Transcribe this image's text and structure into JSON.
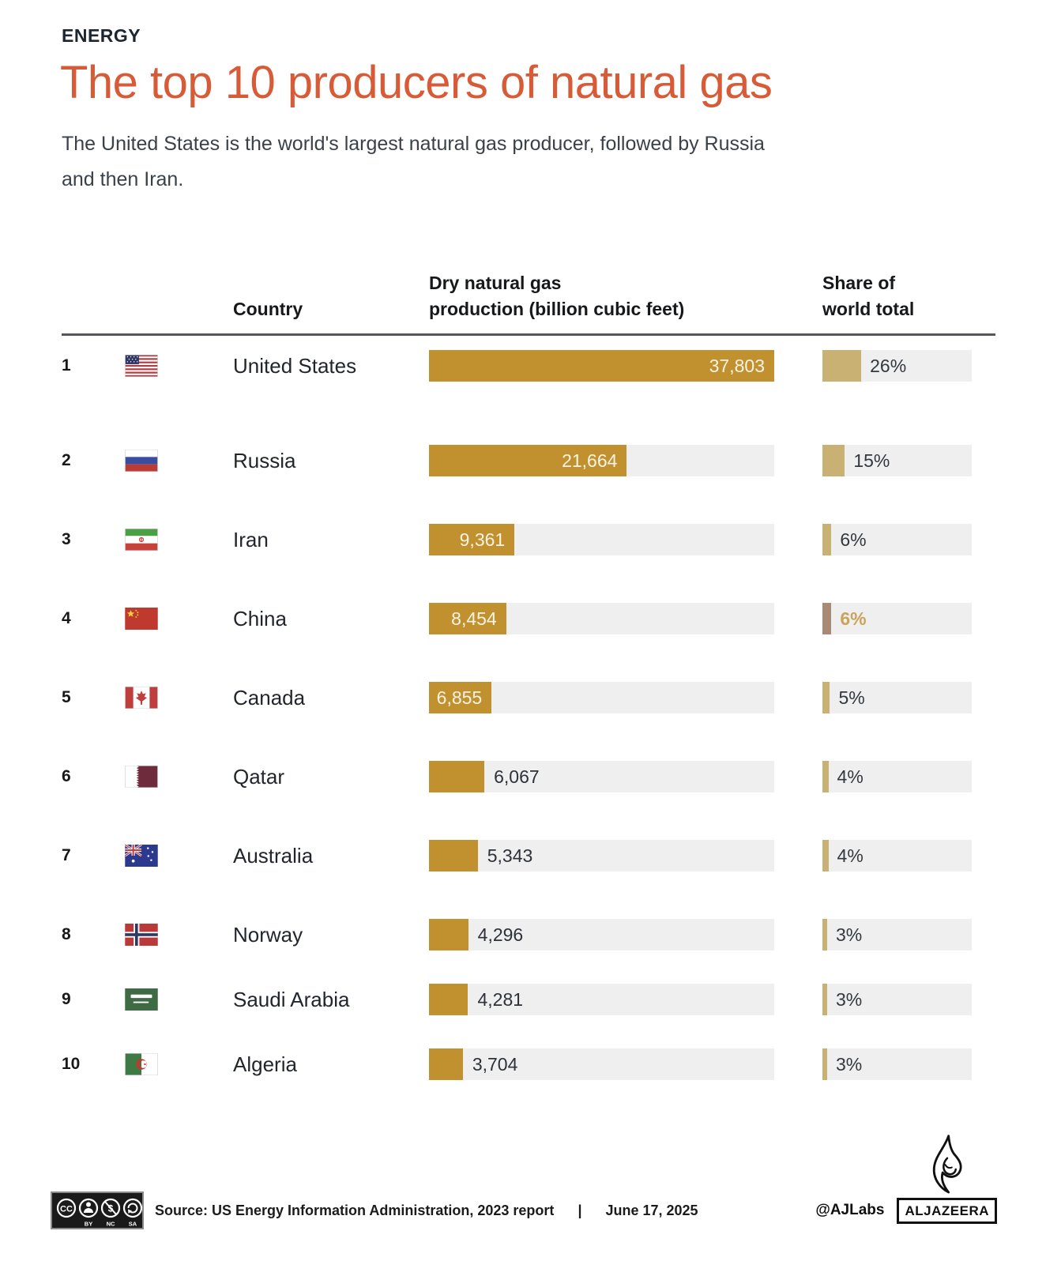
{
  "header": {
    "kicker": "ENERGY",
    "title": "The top 10 producers of natural gas",
    "subtitle_line1": "The United States is the world's largest natural gas producer, followed by Russia",
    "subtitle_line2": "and then Iran."
  },
  "table": {
    "columns": {
      "country": "Country",
      "production_line1": "Dry natural gas",
      "production_line2": "production (billion cubic feet)",
      "share_line1": "Share of",
      "share_line2": "world total"
    }
  },
  "rows": [
    {
      "rank": "1",
      "flag": "united-states",
      "country": "United States",
      "value": "37,803",
      "value_num": 37803,
      "share": "26%",
      "share_num": 26,
      "label_inside": true,
      "share_highlight": false
    },
    {
      "rank": "2",
      "flag": "russia",
      "country": "Russia",
      "value": "21,664",
      "value_num": 21664,
      "share": "15%",
      "share_num": 15,
      "label_inside": true,
      "share_highlight": false
    },
    {
      "rank": "3",
      "flag": "iran",
      "country": "Iran",
      "value": "9,361",
      "value_num": 9361,
      "share": "6%",
      "share_num": 6,
      "label_inside": true,
      "share_highlight": false
    },
    {
      "rank": "4",
      "flag": "china",
      "country": "China",
      "value": "8,454",
      "value_num": 8454,
      "share": "6%",
      "share_num": 6,
      "label_inside": true,
      "share_highlight": true
    },
    {
      "rank": "5",
      "flag": "canada",
      "country": "Canada",
      "value": "6,855",
      "value_num": 6855,
      "share": "5%",
      "share_num": 5,
      "label_inside": true,
      "share_highlight": false
    },
    {
      "rank": "6",
      "flag": "qatar",
      "country": "Qatar",
      "value": "6,067",
      "value_num": 6067,
      "share": "4%",
      "share_num": 4,
      "label_inside": false,
      "share_highlight": false
    },
    {
      "rank": "7",
      "flag": "australia",
      "country": "Australia",
      "value": "5,343",
      "value_num": 5343,
      "share": "4%",
      "share_num": 4,
      "label_inside": false,
      "share_highlight": false
    },
    {
      "rank": "8",
      "flag": "norway",
      "country": "Norway",
      "value": "4,296",
      "value_num": 4296,
      "share": "3%",
      "share_num": 3,
      "label_inside": false,
      "share_highlight": false
    },
    {
      "rank": "9",
      "flag": "saudi-arabia",
      "country": "Saudi Arabia",
      "value": "4,281",
      "value_num": 4281,
      "share": "3%",
      "share_num": 3,
      "label_inside": false,
      "share_highlight": false
    },
    {
      "rank": "10",
      "flag": "algeria",
      "country": "Algeria",
      "value": "3,704",
      "value_num": 3704,
      "share": "3%",
      "share_num": 3,
      "label_inside": false,
      "share_highlight": false
    }
  ],
  "chart_data": {
    "type": "bar",
    "orientation": "horizontal",
    "title": "The top 10 producers of natural gas",
    "categories": [
      "United States",
      "Russia",
      "Iran",
      "China",
      "Canada",
      "Qatar",
      "Australia",
      "Norway",
      "Saudi Arabia",
      "Algeria"
    ],
    "series": [
      {
        "name": "Dry natural gas production (billion cubic feet)",
        "values": [
          37803,
          21664,
          9361,
          8454,
          6855,
          6067,
          5343,
          4296,
          4281,
          3704
        ]
      },
      {
        "name": "Share of world total (%)",
        "values": [
          26,
          15,
          6,
          6,
          5,
          4,
          4,
          3,
          3,
          3
        ]
      }
    ],
    "value_labels": [
      "37,803",
      "21,664",
      "9,361",
      "8,454",
      "6,855",
      "6,067",
      "5,343",
      "4,296",
      "4,281",
      "3,704"
    ],
    "share_labels": [
      "26%",
      "15%",
      "6%",
      "6%",
      "5%",
      "4%",
      "4%",
      "3%",
      "3%",
      "3%"
    ],
    "xlim": [
      0,
      37803
    ],
    "grid": false,
    "legend": false
  },
  "footer": {
    "source": "Source:  US Energy Information Administration, 2023 report",
    "separator": "|",
    "date": "June 17, 2025",
    "credit": "@AJLabs",
    "logo_text": "ALJAZEERA",
    "cc_label": "CC",
    "cc_by": "BY",
    "cc_nc": "NC",
    "cc_sa": "SA"
  },
  "colors": {
    "title": "#d85b38",
    "kicker": "#1d2531",
    "bar": "#c2912f",
    "share_fill": "#c8b173",
    "track": "#efefef",
    "highlight_bar": "#a98b75",
    "highlight_text": "#c9a45a",
    "bar_label_inside": "#faf3e4",
    "text_dark": "#22262c"
  }
}
